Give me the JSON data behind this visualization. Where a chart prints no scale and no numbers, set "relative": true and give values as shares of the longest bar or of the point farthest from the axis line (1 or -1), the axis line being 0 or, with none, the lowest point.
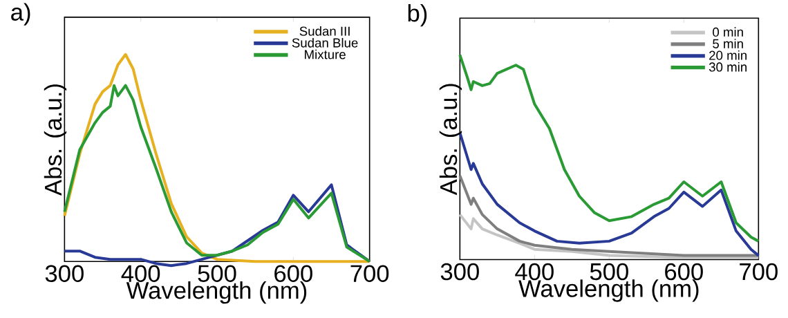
{
  "chart_data": [
    {
      "type": "line",
      "title": "a)",
      "xlabel": "Wavelength (nm)",
      "ylabel": "Abs. (a.u.)",
      "relative": true,
      "xlim": [
        300,
        700
      ],
      "xticks": [
        300,
        400,
        500,
        600,
        700
      ],
      "legend": "top right",
      "series": [
        {
          "name": "Sudan III",
          "color": "#e6b021",
          "x": [
            300,
            320,
            340,
            350,
            360,
            370,
            380,
            390,
            400,
            420,
            440,
            460,
            480,
            500,
            550,
            600,
            650,
            700
          ],
          "values": [
            0.22,
            0.52,
            0.76,
            0.82,
            0.85,
            0.95,
            1.0,
            0.93,
            0.78,
            0.52,
            0.28,
            0.12,
            0.04,
            0.01,
            0,
            0,
            0,
            0
          ]
        },
        {
          "name": "Sudan Blue",
          "color": "#283a96",
          "x": [
            300,
            320,
            340,
            360,
            380,
            400,
            420,
            440,
            460,
            480,
            500,
            520,
            540,
            560,
            580,
            600,
            620,
            650,
            670,
            700
          ],
          "values": [
            0.05,
            0.05,
            0.02,
            0.01,
            0.01,
            0.01,
            -0.01,
            -0.02,
            -0.01,
            0.01,
            0.03,
            0.05,
            0.1,
            0.15,
            0.19,
            0.32,
            0.24,
            0.37,
            0.08,
            0
          ]
        },
        {
          "name": "Mixture",
          "color": "#2a9a35",
          "x": [
            300,
            320,
            340,
            350,
            360,
            365,
            370,
            380,
            390,
            400,
            420,
            440,
            460,
            480,
            500,
            520,
            540,
            560,
            580,
            600,
            620,
            650,
            670,
            700
          ],
          "values": [
            0.24,
            0.54,
            0.67,
            0.72,
            0.75,
            0.85,
            0.8,
            0.85,
            0.78,
            0.65,
            0.45,
            0.24,
            0.09,
            0.03,
            0.03,
            0.05,
            0.08,
            0.14,
            0.18,
            0.3,
            0.21,
            0.33,
            0.07,
            0
          ]
        }
      ]
    },
    {
      "type": "line",
      "title": "b)",
      "xlabel": "Wavelength (nm)",
      "ylabel": "Abs. (a.u.)",
      "relative": true,
      "xlim": [
        300,
        700
      ],
      "xticks": [
        300,
        400,
        500,
        600,
        700
      ],
      "legend": "top right",
      "series": [
        {
          "name": "0 min",
          "color": "#c4c4c4",
          "x": [
            300,
            315,
            318,
            330,
            350,
            380,
            400,
            450,
            500,
            600,
            700
          ],
          "values": [
            0.22,
            0.15,
            0.2,
            0.15,
            0.12,
            0.08,
            0.05,
            0.04,
            0.02,
            0.01,
            0.01
          ]
        },
        {
          "name": "5 min",
          "color": "#7f7f80",
          "x": [
            300,
            315,
            318,
            330,
            350,
            380,
            400,
            450,
            500,
            600,
            700
          ],
          "values": [
            0.41,
            0.27,
            0.3,
            0.22,
            0.15,
            0.09,
            0.07,
            0.05,
            0.04,
            0.02,
            0.02
          ]
        },
        {
          "name": "20 min",
          "color": "#283a96",
          "x": [
            300,
            315,
            318,
            330,
            350,
            380,
            400,
            430,
            460,
            500,
            530,
            560,
            580,
            600,
            625,
            650,
            670,
            690,
            700
          ],
          "values": [
            0.62,
            0.44,
            0.47,
            0.37,
            0.27,
            0.18,
            0.14,
            0.09,
            0.08,
            0.09,
            0.13,
            0.21,
            0.25,
            0.33,
            0.26,
            0.34,
            0.14,
            0.05,
            0.02
          ]
        },
        {
          "name": "30 min",
          "color": "#2a9a35",
          "x": [
            300,
            310,
            315,
            318,
            330,
            340,
            350,
            375,
            385,
            400,
            420,
            440,
            460,
            480,
            500,
            530,
            560,
            580,
            600,
            625,
            650,
            670,
            690,
            700
          ],
          "values": [
            1.0,
            0.89,
            0.83,
            0.87,
            0.85,
            0.86,
            0.91,
            0.95,
            0.93,
            0.76,
            0.64,
            0.44,
            0.31,
            0.23,
            0.19,
            0.21,
            0.27,
            0.3,
            0.38,
            0.31,
            0.38,
            0.18,
            0.11,
            0.09
          ]
        }
      ]
    }
  ]
}
